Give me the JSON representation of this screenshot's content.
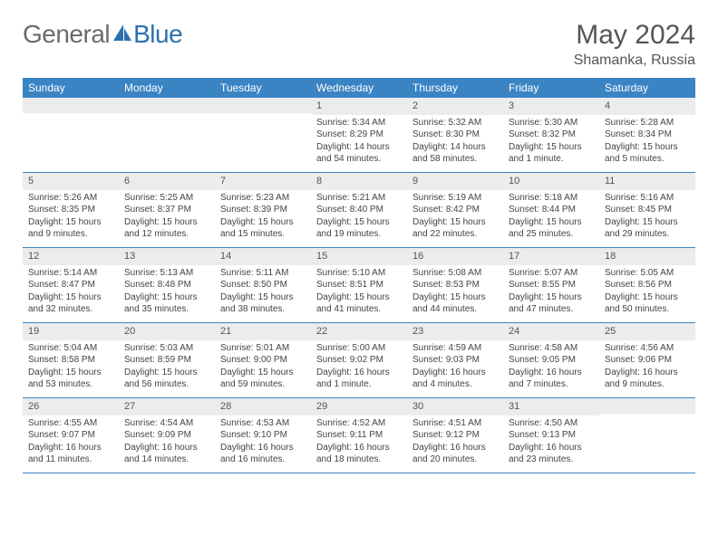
{
  "brand": {
    "name_part1": "General",
    "name_part2": "Blue"
  },
  "title": "May 2024",
  "location": "Shamanka, Russia",
  "colors": {
    "header_bg": "#3b84c4",
    "header_text": "#ffffff",
    "daynum_bg": "#ececec",
    "text": "#444444",
    "brand_gray": "#6b6b6b",
    "brand_blue": "#2d6fb0"
  },
  "day_names": [
    "Sunday",
    "Monday",
    "Tuesday",
    "Wednesday",
    "Thursday",
    "Friday",
    "Saturday"
  ],
  "weeks": [
    [
      {
        "blank": true
      },
      {
        "blank": true
      },
      {
        "blank": true
      },
      {
        "num": "1",
        "sunrise": "Sunrise: 5:34 AM",
        "sunset": "Sunset: 8:29 PM",
        "daylight": "Daylight: 14 hours and 54 minutes."
      },
      {
        "num": "2",
        "sunrise": "Sunrise: 5:32 AM",
        "sunset": "Sunset: 8:30 PM",
        "daylight": "Daylight: 14 hours and 58 minutes."
      },
      {
        "num": "3",
        "sunrise": "Sunrise: 5:30 AM",
        "sunset": "Sunset: 8:32 PM",
        "daylight": "Daylight: 15 hours and 1 minute."
      },
      {
        "num": "4",
        "sunrise": "Sunrise: 5:28 AM",
        "sunset": "Sunset: 8:34 PM",
        "daylight": "Daylight: 15 hours and 5 minutes."
      }
    ],
    [
      {
        "num": "5",
        "sunrise": "Sunrise: 5:26 AM",
        "sunset": "Sunset: 8:35 PM",
        "daylight": "Daylight: 15 hours and 9 minutes."
      },
      {
        "num": "6",
        "sunrise": "Sunrise: 5:25 AM",
        "sunset": "Sunset: 8:37 PM",
        "daylight": "Daylight: 15 hours and 12 minutes."
      },
      {
        "num": "7",
        "sunrise": "Sunrise: 5:23 AM",
        "sunset": "Sunset: 8:39 PM",
        "daylight": "Daylight: 15 hours and 15 minutes."
      },
      {
        "num": "8",
        "sunrise": "Sunrise: 5:21 AM",
        "sunset": "Sunset: 8:40 PM",
        "daylight": "Daylight: 15 hours and 19 minutes."
      },
      {
        "num": "9",
        "sunrise": "Sunrise: 5:19 AM",
        "sunset": "Sunset: 8:42 PM",
        "daylight": "Daylight: 15 hours and 22 minutes."
      },
      {
        "num": "10",
        "sunrise": "Sunrise: 5:18 AM",
        "sunset": "Sunset: 8:44 PM",
        "daylight": "Daylight: 15 hours and 25 minutes."
      },
      {
        "num": "11",
        "sunrise": "Sunrise: 5:16 AM",
        "sunset": "Sunset: 8:45 PM",
        "daylight": "Daylight: 15 hours and 29 minutes."
      }
    ],
    [
      {
        "num": "12",
        "sunrise": "Sunrise: 5:14 AM",
        "sunset": "Sunset: 8:47 PM",
        "daylight": "Daylight: 15 hours and 32 minutes."
      },
      {
        "num": "13",
        "sunrise": "Sunrise: 5:13 AM",
        "sunset": "Sunset: 8:48 PM",
        "daylight": "Daylight: 15 hours and 35 minutes."
      },
      {
        "num": "14",
        "sunrise": "Sunrise: 5:11 AM",
        "sunset": "Sunset: 8:50 PM",
        "daylight": "Daylight: 15 hours and 38 minutes."
      },
      {
        "num": "15",
        "sunrise": "Sunrise: 5:10 AM",
        "sunset": "Sunset: 8:51 PM",
        "daylight": "Daylight: 15 hours and 41 minutes."
      },
      {
        "num": "16",
        "sunrise": "Sunrise: 5:08 AM",
        "sunset": "Sunset: 8:53 PM",
        "daylight": "Daylight: 15 hours and 44 minutes."
      },
      {
        "num": "17",
        "sunrise": "Sunrise: 5:07 AM",
        "sunset": "Sunset: 8:55 PM",
        "daylight": "Daylight: 15 hours and 47 minutes."
      },
      {
        "num": "18",
        "sunrise": "Sunrise: 5:05 AM",
        "sunset": "Sunset: 8:56 PM",
        "daylight": "Daylight: 15 hours and 50 minutes."
      }
    ],
    [
      {
        "num": "19",
        "sunrise": "Sunrise: 5:04 AM",
        "sunset": "Sunset: 8:58 PM",
        "daylight": "Daylight: 15 hours and 53 minutes."
      },
      {
        "num": "20",
        "sunrise": "Sunrise: 5:03 AM",
        "sunset": "Sunset: 8:59 PM",
        "daylight": "Daylight: 15 hours and 56 minutes."
      },
      {
        "num": "21",
        "sunrise": "Sunrise: 5:01 AM",
        "sunset": "Sunset: 9:00 PM",
        "daylight": "Daylight: 15 hours and 59 minutes."
      },
      {
        "num": "22",
        "sunrise": "Sunrise: 5:00 AM",
        "sunset": "Sunset: 9:02 PM",
        "daylight": "Daylight: 16 hours and 1 minute."
      },
      {
        "num": "23",
        "sunrise": "Sunrise: 4:59 AM",
        "sunset": "Sunset: 9:03 PM",
        "daylight": "Daylight: 16 hours and 4 minutes."
      },
      {
        "num": "24",
        "sunrise": "Sunrise: 4:58 AM",
        "sunset": "Sunset: 9:05 PM",
        "daylight": "Daylight: 16 hours and 7 minutes."
      },
      {
        "num": "25",
        "sunrise": "Sunrise: 4:56 AM",
        "sunset": "Sunset: 9:06 PM",
        "daylight": "Daylight: 16 hours and 9 minutes."
      }
    ],
    [
      {
        "num": "26",
        "sunrise": "Sunrise: 4:55 AM",
        "sunset": "Sunset: 9:07 PM",
        "daylight": "Daylight: 16 hours and 11 minutes."
      },
      {
        "num": "27",
        "sunrise": "Sunrise: 4:54 AM",
        "sunset": "Sunset: 9:09 PM",
        "daylight": "Daylight: 16 hours and 14 minutes."
      },
      {
        "num": "28",
        "sunrise": "Sunrise: 4:53 AM",
        "sunset": "Sunset: 9:10 PM",
        "daylight": "Daylight: 16 hours and 16 minutes."
      },
      {
        "num": "29",
        "sunrise": "Sunrise: 4:52 AM",
        "sunset": "Sunset: 9:11 PM",
        "daylight": "Daylight: 16 hours and 18 minutes."
      },
      {
        "num": "30",
        "sunrise": "Sunrise: 4:51 AM",
        "sunset": "Sunset: 9:12 PM",
        "daylight": "Daylight: 16 hours and 20 minutes."
      },
      {
        "num": "31",
        "sunrise": "Sunrise: 4:50 AM",
        "sunset": "Sunset: 9:13 PM",
        "daylight": "Daylight: 16 hours and 23 minutes."
      },
      {
        "blank": true
      }
    ]
  ]
}
